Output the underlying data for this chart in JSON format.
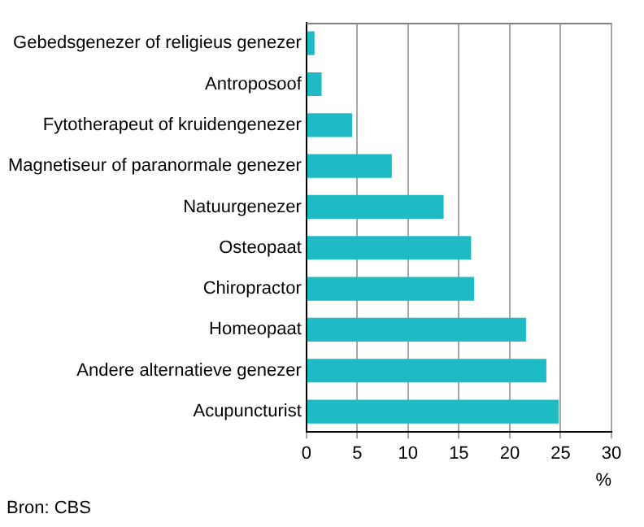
{
  "chart_data": {
    "type": "bar",
    "orientation": "horizontal",
    "categories": [
      "Gebedsgenezer of religieus genezer",
      "Antroposoof",
      "Fytotherapeut of kruidengenezer",
      "Magnetiseur of paranormale genezer",
      "Natuurgenezer",
      "Osteopaat",
      "Chiropractor",
      "Homeopaat",
      "Andere alternatieve genezer",
      "Acupuncturist"
    ],
    "values": [
      0.8,
      1.5,
      4.5,
      8.4,
      13.5,
      16.2,
      16.5,
      21.6,
      23.6,
      24.8
    ],
    "color": "#1fbbc4",
    "xlim": [
      0,
      30
    ],
    "xticks": [
      0,
      5,
      10,
      15,
      20,
      25,
      30
    ],
    "xlabel": "%",
    "grid": "x",
    "legend": false,
    "annotations": [
      "Bron: CBS"
    ]
  }
}
